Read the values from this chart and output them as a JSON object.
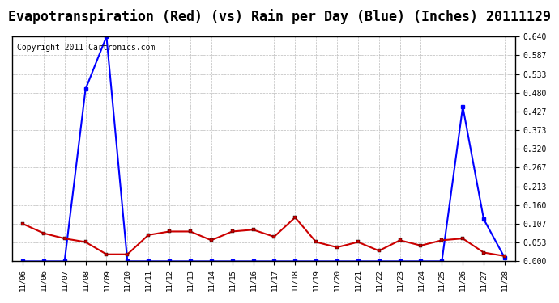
{
  "title": "Evapotranspiration (Red) (vs) Rain per Day (Blue) (Inches) 20111129",
  "copyright": "Copyright 2011 Cartronics.com",
  "x_labels": [
    "11/06",
    "11/06",
    "11/07",
    "11/08",
    "11/09",
    "11/10",
    "11/11",
    "11/12",
    "11/13",
    "11/14",
    "11/15",
    "11/16",
    "11/17",
    "11/18",
    "11/19",
    "11/20",
    "11/21",
    "11/22",
    "11/23",
    "11/24",
    "11/25",
    "11/26",
    "11/27",
    "11/28"
  ],
  "blue_rain": [
    0.0,
    0.0,
    0.0,
    0.49,
    0.64,
    0.0,
    0.0,
    0.0,
    0.0,
    0.0,
    0.0,
    0.0,
    0.0,
    0.0,
    0.0,
    0.0,
    0.0,
    0.0,
    0.0,
    0.0,
    0.0,
    0.44,
    0.12,
    0.01
  ],
  "red_et": [
    0.107,
    0.08,
    0.065,
    0.055,
    0.02,
    0.02,
    0.075,
    0.085,
    0.085,
    0.06,
    0.085,
    0.09,
    0.07,
    0.125,
    0.055,
    0.04,
    0.055,
    0.03,
    0.06,
    0.045,
    0.06,
    0.065,
    0.025,
    0.015
  ],
  "yticks": [
    0.0,
    0.053,
    0.107,
    0.16,
    0.213,
    0.267,
    0.32,
    0.373,
    0.427,
    0.48,
    0.533,
    0.587,
    0.64
  ],
  "ymax": 0.64,
  "blue_color": "#0000ff",
  "red_color": "#cc0000",
  "bg_color": "#ffffff",
  "grid_color": "#bbbbbb",
  "title_fontsize": 12,
  "copyright_fontsize": 7
}
